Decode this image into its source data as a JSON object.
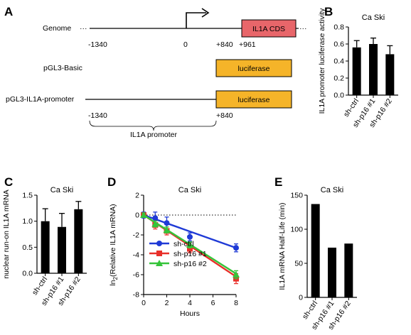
{
  "panel_a": {
    "letter": "A",
    "genome_label": "Genome",
    "left_dots": "···",
    "right_dots": "···",
    "cds_label": "IL1A CDS",
    "coord_left": "-1340",
    "coord_zero": "0",
    "coord_840": "+840",
    "coord_961": "+961",
    "basic_label": "pGL3-Basic",
    "luciferase_label": "luciferase",
    "promoter_construct_label": "pGL3-IL1A-promoter",
    "coord2_left": "-1340",
    "coord2_840": "+840",
    "promoter_label": "IL1A promoter",
    "cds_color": "#e8666a",
    "luciferase_color": "#f5b429"
  },
  "chart_data": [
    {
      "panel": "B",
      "type": "bar",
      "title": "Ca Ski",
      "ylabel": "IL1A promoter luciferase activity",
      "categories": [
        "sh-ctrl",
        "sh-p16 #1",
        "sh-p16 #2"
      ],
      "values": [
        0.56,
        0.6,
        0.48
      ],
      "errors": [
        0.08,
        0.07,
        0.1
      ],
      "ylim": [
        0,
        0.8
      ],
      "yticks": [
        "0.0",
        "0.2",
        "0.4",
        "0.6",
        "0.8"
      ]
    },
    {
      "panel": "C",
      "type": "bar",
      "title": "Ca Ski",
      "ylabel": "nuclear run-on IL1A mRNA",
      "categories": [
        "sh-ctrl",
        "sh-p16 #1",
        "sh-p16 #2"
      ],
      "values": [
        1.0,
        0.89,
        1.23
      ],
      "errors": [
        0.24,
        0.26,
        0.15
      ],
      "ylim": [
        0,
        1.5
      ],
      "yticks": [
        "0.0",
        "0.5",
        "1.0",
        "1.5"
      ]
    },
    {
      "panel": "D",
      "type": "line",
      "title": "Ca Ski",
      "xlabel": "Hours",
      "ylabel": "ln₂(Relative IL1A mRNA)",
      "ylabel_parts": {
        "prefix": "ln",
        "sub": "2",
        "suffix": "(Relative IL1A mRNA)"
      },
      "x": [
        0,
        1,
        2,
        4,
        8
      ],
      "xlim": [
        0,
        8
      ],
      "ylim": [
        -8,
        2
      ],
      "xticks": [
        "0",
        "2",
        "4",
        "6",
        "8"
      ],
      "yticks": [
        "2",
        "0",
        "-2",
        "-4",
        "-6",
        "-8"
      ],
      "series": [
        {
          "name": "sh-ctrl",
          "color": "#1f3ad6",
          "marker": "circle",
          "values": [
            0,
            -0.3,
            -0.8,
            -2.2,
            -3.3
          ],
          "errors": [
            0.3,
            0.6,
            0.6,
            0.4,
            0.4
          ],
          "fit": [
            0,
            -3.3
          ]
        },
        {
          "name": "sh-p16 #1",
          "color": "#e8302a",
          "marker": "square",
          "values": [
            0,
            -1.0,
            -1.6,
            -3.4,
            -6.4
          ],
          "errors": [
            0.2,
            0.4,
            0.4,
            0.4,
            0.5
          ],
          "fit": [
            0,
            -6.2
          ]
        },
        {
          "name": "sh-p16 #2",
          "color": "#35c43a",
          "marker": "triangle",
          "values": [
            0,
            -0.9,
            -1.5,
            -3.0,
            -6.0
          ],
          "errors": [
            0.2,
            0.3,
            0.3,
            0.3,
            0.4
          ],
          "fit": [
            0,
            -5.9
          ]
        }
      ],
      "legend_placement": "bottom-left"
    },
    {
      "panel": "E",
      "type": "bar",
      "title": "Ca Ski",
      "ylabel": "IL1A mRNA Half-Life (min)",
      "categories": [
        "sh-ctrl",
        "sh-p16 #1",
        "sh-p16 #2"
      ],
      "values": [
        137,
        73,
        79
      ],
      "ylim": [
        0,
        150
      ],
      "yticks": [
        "0",
        "50",
        "100",
        "150"
      ]
    }
  ]
}
